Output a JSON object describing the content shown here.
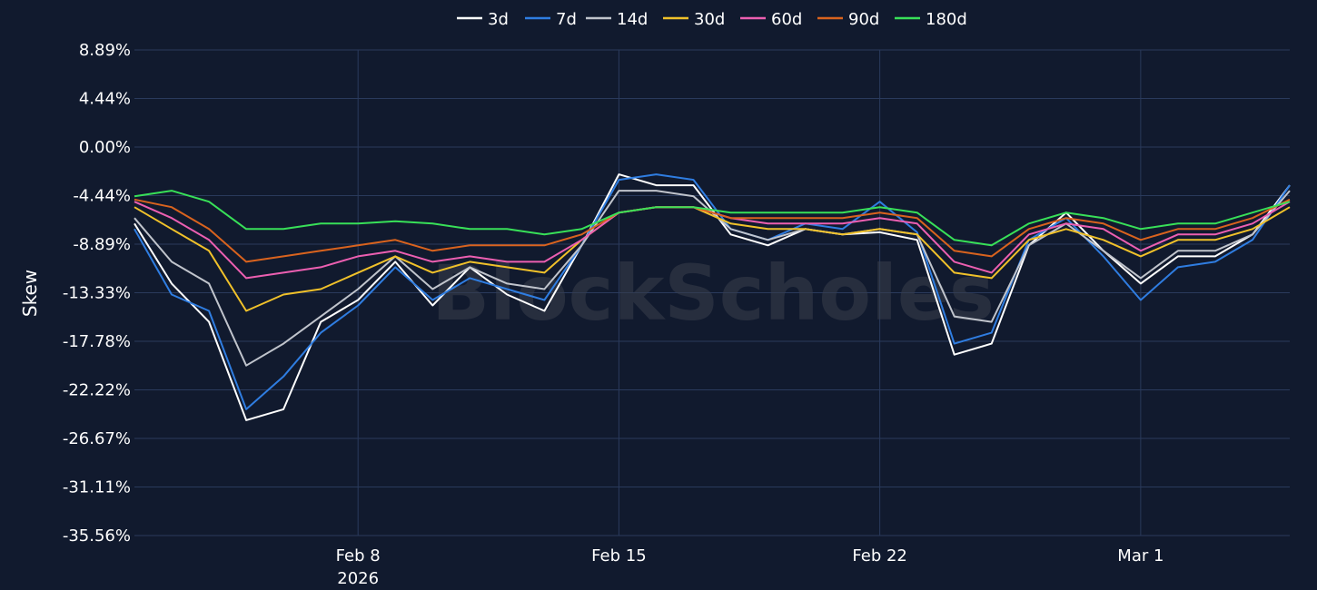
{
  "chart_data": {
    "type": "line",
    "title": "",
    "xlabel": "",
    "ylabel": "Skew",
    "watermark": "BlockScholes",
    "x_range": [
      "2026-02-02",
      "2026-03-05"
    ],
    "ylim": [
      -35.56,
      8.89
    ],
    "y_ticks": [
      "8.89%",
      "4.44%",
      "0.00%",
      "-4.44%",
      "-8.89%",
      "-13.33%",
      "-17.78%",
      "-22.22%",
      "-26.67%",
      "-31.11%",
      "-35.56%"
    ],
    "x_ticks": [
      {
        "date": "2026-02-08",
        "label": "Feb 8",
        "sublabel": "2026"
      },
      {
        "date": "2026-02-15",
        "label": "Feb 15",
        "sublabel": ""
      },
      {
        "date": "2026-02-22",
        "label": "Feb 22",
        "sublabel": ""
      },
      {
        "date": "2026-03-01",
        "label": "Mar 1",
        "sublabel": ""
      }
    ],
    "grid": true,
    "legend_position": "top-center",
    "x": [
      "2026-02-02",
      "2026-02-03",
      "2026-02-04",
      "2026-02-05",
      "2026-02-06",
      "2026-02-07",
      "2026-02-08",
      "2026-02-09",
      "2026-02-10",
      "2026-02-11",
      "2026-02-12",
      "2026-02-13",
      "2026-02-14",
      "2026-02-15",
      "2026-02-16",
      "2026-02-17",
      "2026-02-18",
      "2026-02-19",
      "2026-02-20",
      "2026-02-21",
      "2026-02-22",
      "2026-02-23",
      "2026-02-24",
      "2026-02-25",
      "2026-02-26",
      "2026-02-27",
      "2026-02-28",
      "2026-03-01",
      "2026-03-02",
      "2026-03-03",
      "2026-03-04",
      "2026-03-05"
    ],
    "series": [
      {
        "name": "3d",
        "color": "#ffffff",
        "values": [
          -7.0,
          -12.5,
          -16.0,
          -25.0,
          -24.0,
          -16.0,
          -14.0,
          -10.5,
          -14.5,
          -11.0,
          -13.5,
          -15.0,
          -9.0,
          -2.5,
          -3.5,
          -3.5,
          -8.0,
          -9.0,
          -7.5,
          -8.0,
          -7.8,
          -8.5,
          -19.0,
          -18.0,
          -9.0,
          -6.0,
          -9.5,
          -12.5,
          -10.0,
          -10.0,
          -8.0,
          -3.5
        ]
      },
      {
        "name": "7d",
        "color": "#2f7de1",
        "values": [
          -7.5,
          -13.5,
          -15.0,
          -24.0,
          -21.0,
          -17.0,
          -14.5,
          -11.0,
          -14.0,
          -12.0,
          -13.0,
          -14.0,
          -9.0,
          -3.0,
          -2.5,
          -3.0,
          -7.5,
          -8.5,
          -7.0,
          -7.5,
          -5.0,
          -7.8,
          -18.0,
          -17.0,
          -8.5,
          -6.5,
          -10.0,
          -14.0,
          -11.0,
          -10.5,
          -8.5,
          -3.5
        ]
      },
      {
        "name": "14d",
        "color": "#c0c4cc",
        "values": [
          -6.5,
          -10.5,
          -12.5,
          -20.0,
          -18.0,
          -15.5,
          -13.0,
          -10.0,
          -13.0,
          -11.0,
          -12.5,
          -13.0,
          -9.0,
          -4.0,
          -4.0,
          -4.5,
          -7.5,
          -8.5,
          -7.5,
          -8.0,
          -7.5,
          -8.0,
          -15.5,
          -16.0,
          -9.0,
          -7.0,
          -9.5,
          -12.0,
          -9.5,
          -9.5,
          -8.0,
          -4.0
        ]
      },
      {
        "name": "30d",
        "color": "#f0c12a",
        "values": [
          -5.5,
          -7.5,
          -9.5,
          -15.0,
          -13.5,
          -13.0,
          -11.5,
          -10.0,
          -11.5,
          -10.5,
          -11.0,
          -11.5,
          -8.5,
          -6.0,
          -5.5,
          -5.5,
          -7.0,
          -7.5,
          -7.5,
          -8.0,
          -7.5,
          -8.0,
          -11.5,
          -12.0,
          -8.5,
          -7.5,
          -8.5,
          -10.0,
          -8.5,
          -8.5,
          -7.5,
          -5.5
        ]
      },
      {
        "name": "60d",
        "color": "#ec5fb1",
        "values": [
          -5.0,
          -6.5,
          -8.5,
          -12.0,
          -11.5,
          -11.0,
          -10.0,
          -9.5,
          -10.5,
          -10.0,
          -10.5,
          -10.5,
          -8.5,
          -6.0,
          -5.5,
          -5.5,
          -6.5,
          -7.0,
          -7.0,
          -7.0,
          -6.5,
          -7.0,
          -10.5,
          -11.5,
          -8.0,
          -7.0,
          -7.5,
          -9.5,
          -8.0,
          -8.0,
          -7.0,
          -5.0
        ]
      },
      {
        "name": "90d",
        "color": "#d9631e",
        "values": [
          -4.8,
          -5.5,
          -7.5,
          -10.5,
          -10.0,
          -9.5,
          -9.0,
          -8.5,
          -9.5,
          -9.0,
          -9.0,
          -9.0,
          -8.0,
          -6.0,
          -5.5,
          -5.5,
          -6.5,
          -6.5,
          -6.5,
          -6.5,
          -6.0,
          -6.5,
          -9.5,
          -10.0,
          -7.5,
          -6.5,
          -7.0,
          -8.5,
          -7.5,
          -7.5,
          -6.5,
          -4.8
        ]
      },
      {
        "name": "180d",
        "color": "#38e058",
        "values": [
          -4.5,
          -4.0,
          -5.0,
          -7.5,
          -7.5,
          -7.0,
          -7.0,
          -6.8,
          -7.0,
          -7.5,
          -7.5,
          -8.0,
          -7.5,
          -6.0,
          -5.5,
          -5.5,
          -6.0,
          -6.0,
          -6.0,
          -6.0,
          -5.5,
          -6.0,
          -8.5,
          -9.0,
          -7.0,
          -6.0,
          -6.5,
          -7.5,
          -7.0,
          -7.0,
          -6.0,
          -5.0
        ]
      }
    ]
  }
}
